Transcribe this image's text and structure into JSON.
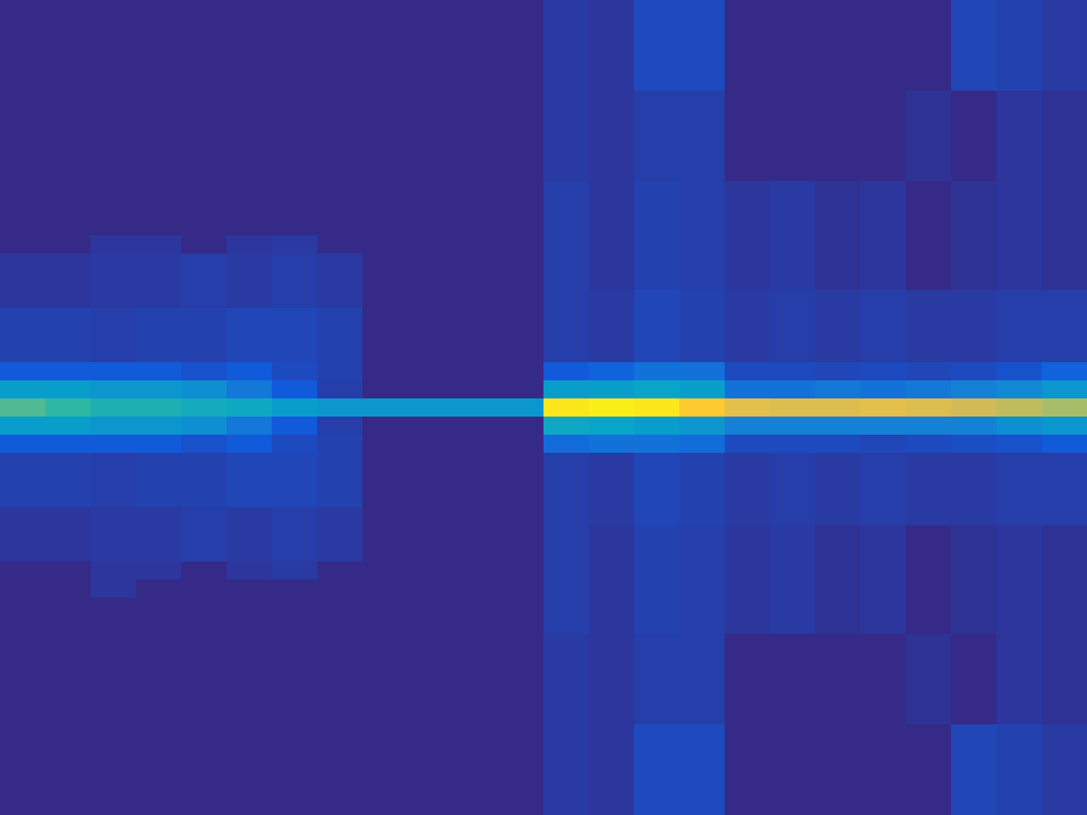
{
  "chart_data": {
    "type": "heatmap",
    "tick_labels": false,
    "zlim": [
      0,
      1
    ],
    "cells": [
      [
        0,
        0,
        0,
        0,
        0,
        0,
        0,
        0,
        0,
        0,
        0,
        0,
        0.04,
        0.03,
        0.08,
        0.08,
        0,
        0,
        0,
        0,
        0,
        0.07,
        0.06,
        0.04
      ],
      [
        0,
        0,
        0,
        0,
        0,
        0,
        0,
        0,
        0,
        0,
        0,
        0,
        0.04,
        0.03,
        0.08,
        0.08,
        0,
        0,
        0,
        0,
        0,
        0.07,
        0.06,
        0.04
      ],
      [
        0,
        0,
        0,
        0,
        0,
        0,
        0,
        0,
        0,
        0,
        0,
        0,
        0.04,
        0.03,
        0.08,
        0.08,
        0,
        0,
        0,
        0,
        0,
        0.07,
        0.06,
        0.04
      ],
      [
        0,
        0,
        0,
        0,
        0,
        0,
        0,
        0,
        0,
        0,
        0,
        0,
        0.04,
        0.03,
        0.08,
        0.08,
        0,
        0,
        0,
        0,
        0,
        0.07,
        0.06,
        0.04
      ],
      [
        0,
        0,
        0,
        0,
        0,
        0,
        0,
        0,
        0,
        0,
        0,
        0,
        0.04,
        0.03,
        0.08,
        0.08,
        0,
        0,
        0,
        0,
        0,
        0.07,
        0.06,
        0.04
      ],
      [
        0,
        0,
        0,
        0,
        0,
        0,
        0,
        0,
        0,
        0,
        0,
        0,
        0.04,
        0.03,
        0.05,
        0.05,
        0,
        0,
        0,
        0,
        0.02,
        0,
        0.03,
        0.02
      ],
      [
        0,
        0,
        0,
        0,
        0,
        0,
        0,
        0,
        0,
        0,
        0,
        0,
        0.04,
        0.03,
        0.05,
        0.05,
        0,
        0,
        0,
        0,
        0.02,
        0,
        0.03,
        0.02
      ],
      [
        0,
        0,
        0,
        0,
        0,
        0,
        0,
        0,
        0,
        0,
        0,
        0,
        0.04,
        0.03,
        0.05,
        0.05,
        0,
        0,
        0,
        0,
        0.02,
        0,
        0.03,
        0.02
      ],
      [
        0,
        0,
        0,
        0,
        0,
        0,
        0,
        0,
        0,
        0,
        0,
        0,
        0.04,
        0.03,
        0.05,
        0.05,
        0,
        0,
        0,
        0,
        0.02,
        0,
        0.03,
        0.02
      ],
      [
        0,
        0,
        0,
        0,
        0,
        0,
        0,
        0,
        0,
        0,
        0,
        0,
        0.04,
        0.03,
        0.05,
        0.05,
        0,
        0,
        0,
        0,
        0.02,
        0,
        0.03,
        0.02
      ],
      [
        0,
        0,
        0,
        0,
        0,
        0,
        0,
        0,
        0,
        0,
        0,
        0,
        0.05,
        0.03,
        0.06,
        0.05,
        0.03,
        0.04,
        0.02,
        0.03,
        0,
        0.02,
        0.03,
        0.02
      ],
      [
        0,
        0,
        0,
        0,
        0,
        0,
        0,
        0,
        0,
        0,
        0,
        0,
        0.05,
        0.03,
        0.06,
        0.05,
        0.03,
        0.04,
        0.02,
        0.03,
        0,
        0.02,
        0.03,
        0.02
      ],
      [
        0,
        0,
        0,
        0,
        0,
        0,
        0,
        0,
        0,
        0,
        0,
        0,
        0.05,
        0.03,
        0.06,
        0.05,
        0.03,
        0.04,
        0.02,
        0.03,
        0,
        0.02,
        0.03,
        0.02
      ],
      [
        0,
        0,
        0.03,
        0.03,
        0,
        0.03,
        0.04,
        0,
        0,
        0,
        0,
        0,
        0.05,
        0.03,
        0.06,
        0.05,
        0.03,
        0.04,
        0.02,
        0.03,
        0,
        0.02,
        0.03,
        0.02
      ],
      [
        0.03,
        0.03,
        0.04,
        0.04,
        0.05,
        0.04,
        0.05,
        0.04,
        0,
        0,
        0,
        0,
        0.05,
        0.03,
        0.06,
        0.05,
        0.03,
        0.04,
        0.02,
        0.03,
        0,
        0.02,
        0.03,
        0.02
      ],
      [
        0.03,
        0.03,
        0.04,
        0.04,
        0.05,
        0.04,
        0.05,
        0.04,
        0,
        0,
        0,
        0,
        0.05,
        0.03,
        0.06,
        0.05,
        0.03,
        0.04,
        0.02,
        0.03,
        0,
        0.02,
        0.03,
        0.02
      ],
      [
        0.03,
        0.03,
        0.04,
        0.04,
        0.05,
        0.04,
        0.05,
        0.04,
        0,
        0,
        0,
        0,
        0.05,
        0.04,
        0.07,
        0.06,
        0.04,
        0.05,
        0.04,
        0.05,
        0.04,
        0.04,
        0.05,
        0.05
      ],
      [
        0.06,
        0.06,
        0.05,
        0.06,
        0.06,
        0.07,
        0.07,
        0.06,
        0,
        0,
        0,
        0,
        0.05,
        0.04,
        0.07,
        0.06,
        0.04,
        0.05,
        0.04,
        0.05,
        0.04,
        0.04,
        0.05,
        0.05
      ],
      [
        0.06,
        0.06,
        0.05,
        0.06,
        0.06,
        0.07,
        0.07,
        0.06,
        0,
        0,
        0,
        0,
        0.05,
        0.04,
        0.07,
        0.06,
        0.04,
        0.05,
        0.04,
        0.05,
        0.04,
        0.04,
        0.05,
        0.05
      ],
      [
        0.06,
        0.06,
        0.05,
        0.06,
        0.06,
        0.07,
        0.07,
        0.06,
        0,
        0,
        0,
        0,
        0.05,
        0.04,
        0.07,
        0.06,
        0.04,
        0.05,
        0.04,
        0.05,
        0.04,
        0.04,
        0.05,
        0.05
      ],
      [
        0.12,
        0.12,
        0.12,
        0.12,
        0.1,
        0.12,
        0.08,
        0.06,
        0,
        0,
        0,
        0,
        0.12,
        0.15,
        0.2,
        0.2,
        0.08,
        0.08,
        0.07,
        0.08,
        0.07,
        0.08,
        0.1,
        0.15
      ],
      [
        0.35,
        0.35,
        0.33,
        0.33,
        0.3,
        0.22,
        0.12,
        0.05,
        0,
        0,
        0,
        0,
        0.35,
        0.35,
        0.38,
        0.36,
        0.2,
        0.2,
        0.22,
        0.2,
        0.22,
        0.25,
        0.28,
        0.32
      ],
      [
        0.55,
        0.5,
        0.45,
        0.45,
        0.42,
        0.4,
        0.35,
        0.33,
        0.33,
        0.33,
        0.33,
        0.33,
        0.95,
        0.97,
        0.95,
        0.88,
        0.8,
        0.78,
        0.78,
        0.8,
        0.78,
        0.75,
        0.72,
        0.68
      ],
      [
        0.35,
        0.35,
        0.33,
        0.33,
        0.3,
        0.22,
        0.12,
        0.05,
        0,
        0,
        0,
        0,
        0.4,
        0.38,
        0.35,
        0.33,
        0.25,
        0.25,
        0.25,
        0.25,
        0.25,
        0.25,
        0.3,
        0.32
      ],
      [
        0.12,
        0.12,
        0.12,
        0.12,
        0.1,
        0.12,
        0.08,
        0.06,
        0,
        0,
        0,
        0,
        0.18,
        0.2,
        0.2,
        0.18,
        0.08,
        0.08,
        0.08,
        0.07,
        0.08,
        0.09,
        0.1,
        0.12
      ],
      [
        0.06,
        0.06,
        0.05,
        0.06,
        0.06,
        0.07,
        0.07,
        0.06,
        0,
        0,
        0,
        0,
        0.05,
        0.04,
        0.07,
        0.06,
        0.04,
        0.05,
        0.04,
        0.05,
        0.04,
        0.04,
        0.05,
        0.05
      ],
      [
        0.06,
        0.06,
        0.05,
        0.06,
        0.06,
        0.07,
        0.07,
        0.06,
        0,
        0,
        0,
        0,
        0.05,
        0.04,
        0.07,
        0.06,
        0.04,
        0.05,
        0.04,
        0.05,
        0.04,
        0.04,
        0.05,
        0.05
      ],
      [
        0.06,
        0.06,
        0.05,
        0.06,
        0.06,
        0.07,
        0.07,
        0.06,
        0,
        0,
        0,
        0,
        0.05,
        0.04,
        0.07,
        0.06,
        0.04,
        0.05,
        0.04,
        0.05,
        0.04,
        0.04,
        0.05,
        0.05
      ],
      [
        0.03,
        0.03,
        0.04,
        0.04,
        0.05,
        0.04,
        0.05,
        0.04,
        0,
        0,
        0,
        0,
        0.05,
        0.04,
        0.07,
        0.06,
        0.04,
        0.05,
        0.04,
        0.05,
        0.04,
        0.04,
        0.05,
        0.05
      ],
      [
        0.03,
        0.03,
        0.04,
        0.04,
        0.05,
        0.04,
        0.05,
        0.04,
        0,
        0,
        0,
        0,
        0.05,
        0.03,
        0.06,
        0.05,
        0.03,
        0.04,
        0.02,
        0.03,
        0,
        0.02,
        0.03,
        0.02
      ],
      [
        0.03,
        0.03,
        0.04,
        0.04,
        0.05,
        0.04,
        0.05,
        0.04,
        0,
        0,
        0,
        0,
        0.05,
        0.03,
        0.06,
        0.05,
        0.03,
        0.04,
        0.02,
        0.03,
        0,
        0.02,
        0.03,
        0.02
      ],
      [
        0,
        0,
        0.03,
        0.03,
        0,
        0.03,
        0.04,
        0,
        0,
        0,
        0,
        0,
        0.05,
        0.03,
        0.06,
        0.05,
        0.03,
        0.04,
        0.02,
        0.03,
        0,
        0.02,
        0.03,
        0.02
      ],
      [
        0,
        0,
        0.03,
        0,
        0,
        0,
        0,
        0,
        0,
        0,
        0,
        0,
        0.05,
        0.03,
        0.06,
        0.05,
        0.03,
        0.04,
        0.02,
        0.03,
        0,
        0.02,
        0.03,
        0.02
      ],
      [
        0,
        0,
        0,
        0,
        0,
        0,
        0,
        0,
        0,
        0,
        0,
        0,
        0.05,
        0.03,
        0.06,
        0.05,
        0.03,
        0.04,
        0.02,
        0.03,
        0,
        0.02,
        0.03,
        0.02
      ],
      [
        0,
        0,
        0,
        0,
        0,
        0,
        0,
        0,
        0,
        0,
        0,
        0,
        0.05,
        0.03,
        0.06,
        0.05,
        0.03,
        0.04,
        0.02,
        0.03,
        0,
        0.02,
        0.03,
        0.02
      ],
      [
        0,
        0,
        0,
        0,
        0,
        0,
        0,
        0,
        0,
        0,
        0,
        0,
        0.04,
        0.03,
        0.05,
        0.05,
        0,
        0,
        0,
        0,
        0.02,
        0,
        0.03,
        0.02
      ],
      [
        0,
        0,
        0,
        0,
        0,
        0,
        0,
        0,
        0,
        0,
        0,
        0,
        0.04,
        0.03,
        0.05,
        0.05,
        0,
        0,
        0,
        0,
        0.02,
        0,
        0.03,
        0.02
      ],
      [
        0,
        0,
        0,
        0,
        0,
        0,
        0,
        0,
        0,
        0,
        0,
        0,
        0.04,
        0.03,
        0.05,
        0.05,
        0,
        0,
        0,
        0,
        0.02,
        0,
        0.03,
        0.02
      ],
      [
        0,
        0,
        0,
        0,
        0,
        0,
        0,
        0,
        0,
        0,
        0,
        0,
        0.04,
        0.03,
        0.05,
        0.05,
        0,
        0,
        0,
        0,
        0.02,
        0,
        0.03,
        0.02
      ],
      [
        0,
        0,
        0,
        0,
        0,
        0,
        0,
        0,
        0,
        0,
        0,
        0,
        0.04,
        0.03,
        0.05,
        0.05,
        0,
        0,
        0,
        0,
        0.02,
        0,
        0.03,
        0.02
      ],
      [
        0,
        0,
        0,
        0,
        0,
        0,
        0,
        0,
        0,
        0,
        0,
        0,
        0.04,
        0.03,
        0.08,
        0.08,
        0,
        0,
        0,
        0,
        0,
        0.07,
        0.06,
        0.04
      ],
      [
        0,
        0,
        0,
        0,
        0,
        0,
        0,
        0,
        0,
        0,
        0,
        0,
        0.04,
        0.03,
        0.08,
        0.08,
        0,
        0,
        0,
        0,
        0,
        0.07,
        0.06,
        0.04
      ],
      [
        0,
        0,
        0,
        0,
        0,
        0,
        0,
        0,
        0,
        0,
        0,
        0,
        0.04,
        0.03,
        0.08,
        0.08,
        0,
        0,
        0,
        0,
        0,
        0.07,
        0.06,
        0.04
      ],
      [
        0,
        0,
        0,
        0,
        0,
        0,
        0,
        0,
        0,
        0,
        0,
        0,
        0.04,
        0.03,
        0.08,
        0.08,
        0,
        0,
        0,
        0,
        0,
        0.07,
        0.06,
        0.04
      ],
      [
        0,
        0,
        0,
        0,
        0,
        0,
        0,
        0,
        0,
        0,
        0,
        0,
        0.04,
        0.03,
        0.08,
        0.08,
        0,
        0,
        0,
        0,
        0,
        0.07,
        0.06,
        0.04
      ]
    ]
  }
}
